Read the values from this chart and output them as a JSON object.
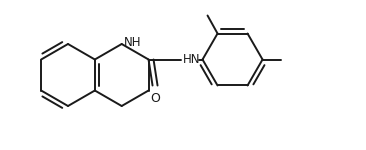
{
  "bg_color": "#ffffff",
  "line_color": "#1a1a1a",
  "line_width": 1.4,
  "figsize": [
    3.66,
    1.5
  ],
  "dpi": 100,
  "xlim": [
    0,
    366
  ],
  "ylim": [
    0,
    150
  ]
}
